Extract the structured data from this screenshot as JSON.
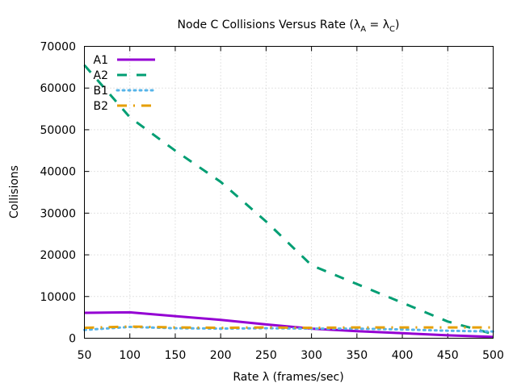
{
  "chart_data": {
    "type": "line",
    "title_main": "Node C Collisions Versus Rate (λ",
    "title_sub1": "A",
    "title_mid": " = λ",
    "title_sub2": "C",
    "title_end": ")",
    "xlabel": "Rate λ (frames/sec)",
    "ylabel": "Collisions",
    "xlim": [
      50,
      500
    ],
    "ylim": [
      0,
      70000
    ],
    "xticks": [
      50,
      100,
      150,
      200,
      250,
      300,
      350,
      400,
      450,
      500
    ],
    "yticks": [
      0,
      10000,
      20000,
      30000,
      40000,
      50000,
      60000,
      70000
    ],
    "grid": true,
    "legend_position": "top-left",
    "x": [
      50,
      100,
      150,
      200,
      250,
      300,
      350,
      400,
      450,
      500
    ],
    "series": [
      {
        "name": "A1",
        "color": "#9400d3",
        "dash": "solid",
        "values": [
          6100,
          6200,
          5300,
          4400,
          3300,
          2300,
          1700,
          1200,
          700,
          300
        ]
      },
      {
        "name": "A2",
        "color": "#009e73",
        "dash": "dashed",
        "values": [
          65500,
          53000,
          45000,
          37500,
          28000,
          17500,
          13000,
          8500,
          4000,
          1000
        ]
      },
      {
        "name": "B1",
        "color": "#56b4e9",
        "dash": "dotted",
        "values": [
          2000,
          2700,
          2400,
          2300,
          2400,
          2300,
          2300,
          2100,
          1800,
          1600
        ]
      },
      {
        "name": "B2",
        "color": "#e69f00",
        "dash": "dashdot",
        "values": [
          2500,
          2800,
          2600,
          2500,
          2600,
          2500,
          2600,
          2600,
          2600,
          2600
        ]
      }
    ]
  }
}
